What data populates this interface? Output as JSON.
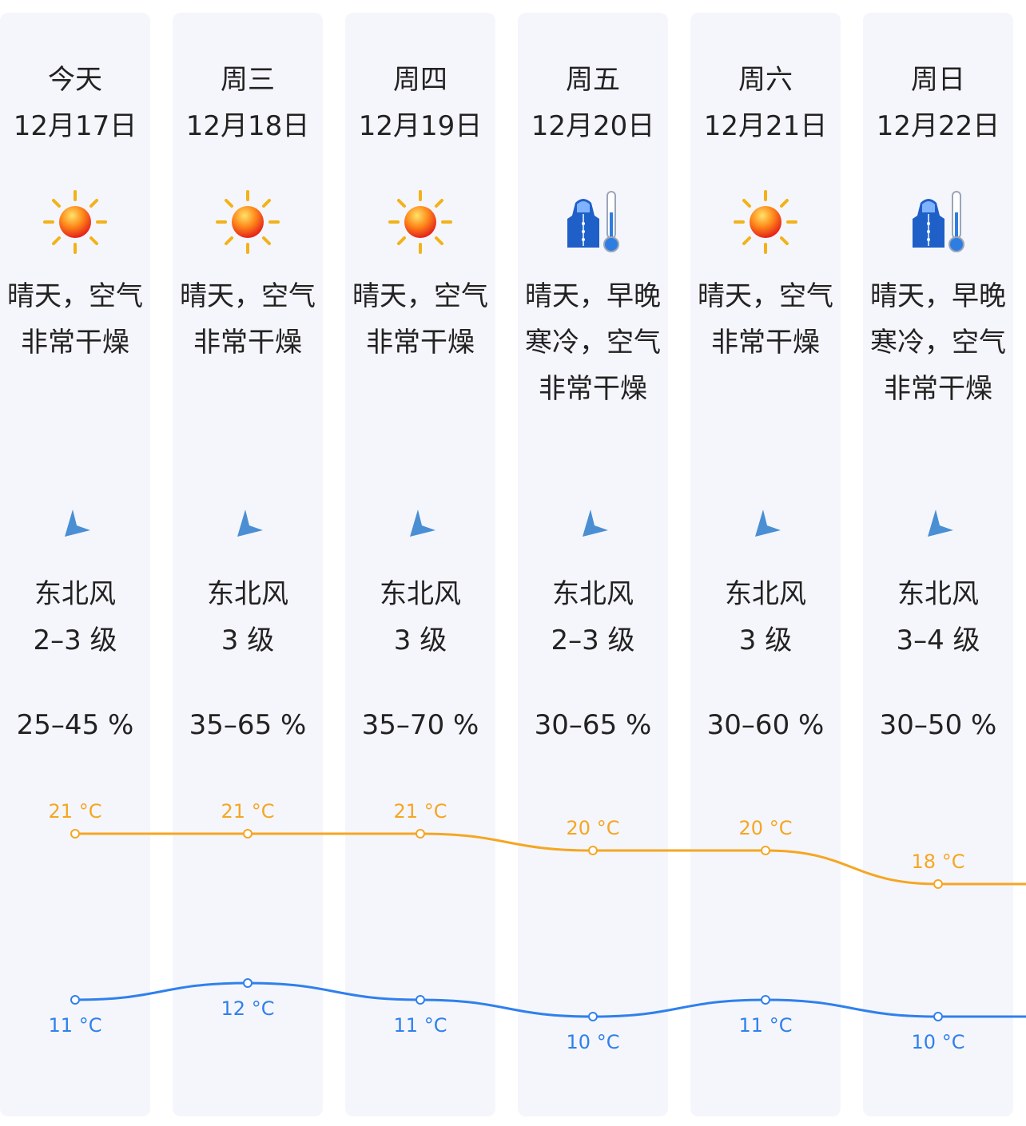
{
  "colors": {
    "column_bg": "#f5f6fb",
    "high_line": "#f5a623",
    "low_line": "#2f80ed",
    "arrow": "#4a8fd4"
  },
  "days": [
    {
      "day": "今天",
      "date": "12月17日",
      "icon": "sunny-icon",
      "desc": [
        "晴天，空气",
        "非常干燥"
      ],
      "wind_dir": "东北风",
      "wind_level": "2–3 级",
      "humidity": "25–45 %",
      "high": "21 °C",
      "low": "11 °C"
    },
    {
      "day": "周三",
      "date": "12月18日",
      "icon": "sunny-icon",
      "desc": [
        "晴天，空气",
        "非常干燥"
      ],
      "wind_dir": "东北风",
      "wind_level": "3 级",
      "humidity": "35–65 %",
      "high": "21 °C",
      "low": "12 °C"
    },
    {
      "day": "周四",
      "date": "12月19日",
      "icon": "sunny-icon",
      "desc": [
        "晴天，空气",
        "非常干燥"
      ],
      "wind_dir": "东北风",
      "wind_level": "3 级",
      "humidity": "35–70 %",
      "high": "21 °C",
      "low": "11 °C"
    },
    {
      "day": "周五",
      "date": "12月20日",
      "icon": "cold-weather-icon",
      "desc": [
        "晴天，早晚",
        "寒冷，空气",
        "非常干燥"
      ],
      "wind_dir": "东北风",
      "wind_level": "2–3 级",
      "humidity": "30–65 %",
      "high": "20 °C",
      "low": "10 °C"
    },
    {
      "day": "周六",
      "date": "12月21日",
      "icon": "sunny-icon",
      "desc": [
        "晴天，空气",
        "非常干燥"
      ],
      "wind_dir": "东北风",
      "wind_level": "3 级",
      "humidity": "30–60 %",
      "high": "20 °C",
      "low": "11 °C"
    },
    {
      "day": "周日",
      "date": "12月22日",
      "icon": "cold-weather-icon",
      "desc": [
        "晴天，早晚",
        "寒冷，空气",
        "非常干燥"
      ],
      "wind_dir": "东北风",
      "wind_level": "3–4 级",
      "humidity": "30–50 %",
      "high": "18 °C",
      "low": "10 °C"
    }
  ],
  "chart_data": {
    "type": "line",
    "categories": [
      "12月17日",
      "12月18日",
      "12月19日",
      "12月20日",
      "12月21日",
      "12月22日"
    ],
    "series": [
      {
        "values": [
          21,
          21,
          21,
          20,
          20,
          18
        ]
      },
      {
        "values": [
          11,
          12,
          11,
          10,
          11,
          10
        ]
      }
    ],
    "unit": "°C"
  }
}
